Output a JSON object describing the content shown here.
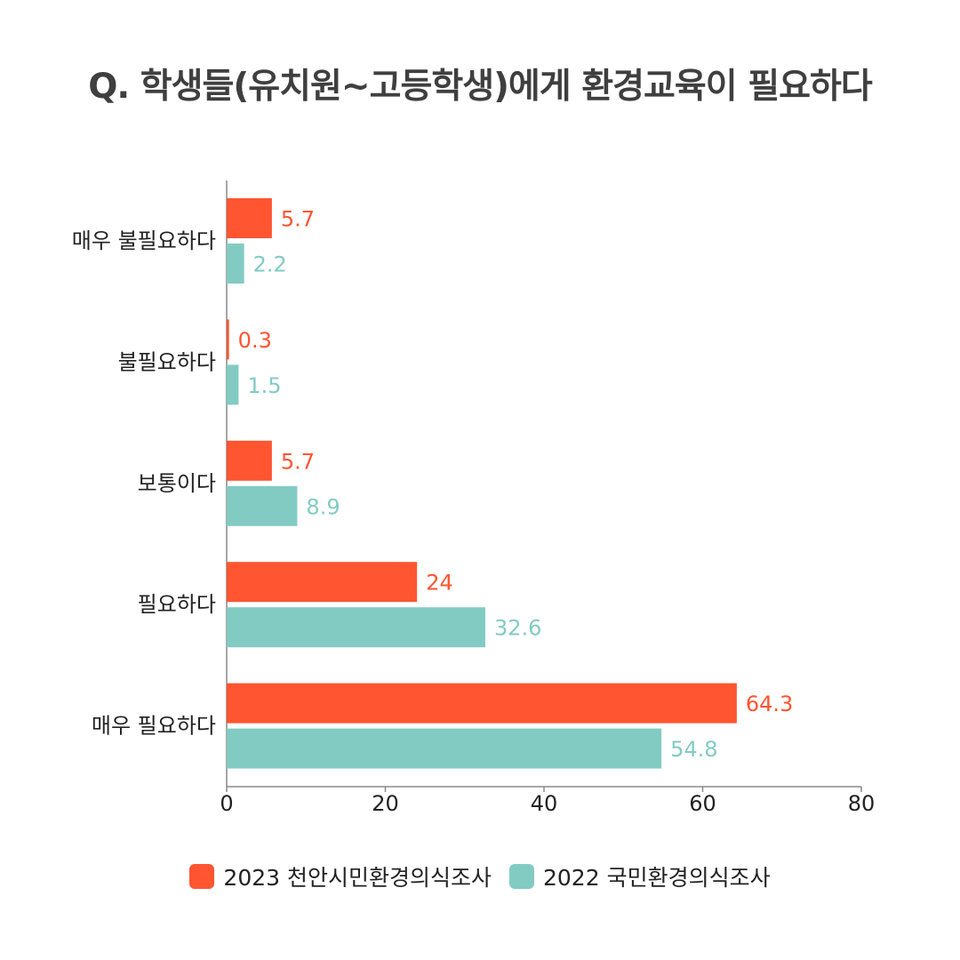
{
  "chart_data": {
    "type": "bar",
    "orientation": "horizontal",
    "title": "Q. 학생들(유치원~고등학생)에게 환경교육이 필요하다",
    "categories": [
      "매우 불필요하다",
      "불필요하다",
      "보통이다",
      "필요하다",
      "매우 필요하다"
    ],
    "series": [
      {
        "name": "2023 천안시민환경의식조사",
        "color": "#ff5530",
        "values": [
          5.7,
          0.3,
          5.7,
          24,
          64.3
        ]
      },
      {
        "name": "2022 국민환경의식조사",
        "color": "#82cbc3",
        "values": [
          2.2,
          1.5,
          8.9,
          32.6,
          54.8
        ]
      }
    ],
    "value_labels": [
      [
        "5.7",
        "0.3",
        "5.7",
        "24",
        "64.3"
      ],
      [
        "2.2",
        "1.5",
        "8.9",
        "32.6",
        "54.8"
      ]
    ],
    "xlim": [
      0,
      80
    ],
    "xticks": [
      0,
      20,
      40,
      60,
      80
    ],
    "xtick_labels": [
      "0",
      "20",
      "40",
      "60",
      "80"
    ],
    "xlabel": "",
    "ylabel": "",
    "legend_position": "bottom-center",
    "grid": false
  }
}
